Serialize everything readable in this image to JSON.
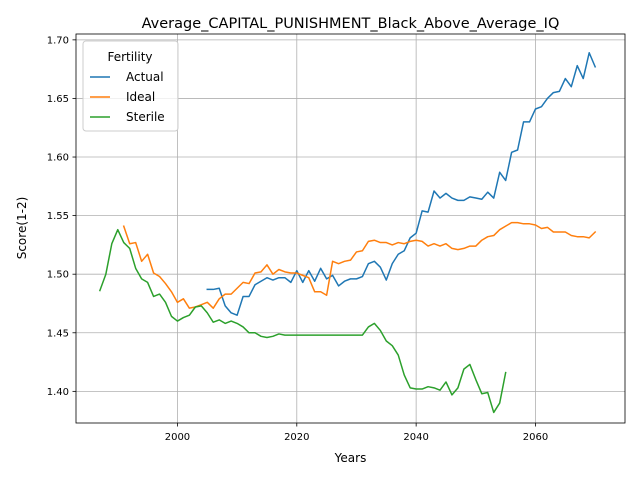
{
  "chart_data": {
    "type": "line",
    "title": "Average_CAPITAL_PUNISHMENT_Black_Above_Average_IQ",
    "xlabel": "Years",
    "ylabel": "Score(1-2)",
    "xlim": [
      1983,
      2075
    ],
    "ylim": [
      1.373,
      1.705
    ],
    "xticks": [
      2000,
      2020,
      2040,
      2060
    ],
    "yticks": [
      1.4,
      1.45,
      1.5,
      1.55,
      1.6,
      1.65,
      1.7
    ],
    "xtick_labels": [
      "2000",
      "2020",
      "2040",
      "2060"
    ],
    "ytick_labels": [
      "1.40",
      "1.45",
      "1.50",
      "1.55",
      "1.60",
      "1.65",
      "1.70"
    ],
    "grid": true,
    "legend": {
      "title": "Fertility",
      "placement": "top-left"
    },
    "series": [
      {
        "name": "Actual",
        "color": "#1f77b4",
        "points": [
          [
            2005,
            1.487
          ],
          [
            2006,
            1.487
          ],
          [
            2007,
            1.488
          ],
          [
            2008,
            1.473
          ],
          [
            2009,
            1.467
          ],
          [
            2010,
            1.465
          ],
          [
            2011,
            1.481
          ],
          [
            2012,
            1.481
          ],
          [
            2013,
            1.491
          ],
          [
            2014,
            1.494
          ],
          [
            2015,
            1.497
          ],
          [
            2016,
            1.495
          ],
          [
            2017,
            1.497
          ],
          [
            2018,
            1.497
          ],
          [
            2019,
            1.493
          ],
          [
            2020,
            1.503
          ],
          [
            2021,
            1.493
          ],
          [
            2022,
            1.503
          ],
          [
            2023,
            1.494
          ],
          [
            2024,
            1.505
          ],
          [
            2025,
            1.496
          ],
          [
            2026,
            1.499
          ],
          [
            2027,
            1.49
          ],
          [
            2028,
            1.494
          ],
          [
            2029,
            1.496
          ],
          [
            2030,
            1.496
          ],
          [
            2031,
            1.498
          ],
          [
            2032,
            1.509
          ],
          [
            2033,
            1.511
          ],
          [
            2034,
            1.506
          ],
          [
            2035,
            1.495
          ],
          [
            2036,
            1.509
          ],
          [
            2037,
            1.517
          ],
          [
            2038,
            1.52
          ],
          [
            2039,
            1.531
          ],
          [
            2040,
            1.535
          ],
          [
            2041,
            1.554
          ],
          [
            2042,
            1.553
          ],
          [
            2043,
            1.571
          ],
          [
            2044,
            1.565
          ],
          [
            2045,
            1.569
          ],
          [
            2046,
            1.565
          ],
          [
            2047,
            1.563
          ],
          [
            2048,
            1.563
          ],
          [
            2049,
            1.566
          ],
          [
            2050,
            1.565
          ],
          [
            2051,
            1.564
          ],
          [
            2052,
            1.57
          ],
          [
            2053,
            1.565
          ],
          [
            2054,
            1.587
          ],
          [
            2055,
            1.58
          ],
          [
            2056,
            1.604
          ],
          [
            2057,
            1.606
          ],
          [
            2058,
            1.63
          ],
          [
            2059,
            1.63
          ],
          [
            2060,
            1.641
          ],
          [
            2061,
            1.643
          ],
          [
            2062,
            1.65
          ],
          [
            2063,
            1.655
          ],
          [
            2064,
            1.656
          ],
          [
            2065,
            1.667
          ],
          [
            2066,
            1.66
          ],
          [
            2067,
            1.678
          ],
          [
            2068,
            1.667
          ],
          [
            2069,
            1.689
          ],
          [
            2070,
            1.677
          ]
        ]
      },
      {
        "name": "Ideal",
        "color": "#ff7f0e",
        "points": [
          [
            1991,
            1.541
          ],
          [
            1992,
            1.526
          ],
          [
            1993,
            1.527
          ],
          [
            1994,
            1.511
          ],
          [
            1995,
            1.517
          ],
          [
            1996,
            1.501
          ],
          [
            1997,
            1.498
          ],
          [
            1998,
            1.492
          ],
          [
            1999,
            1.485
          ],
          [
            2000,
            1.476
          ],
          [
            2001,
            1.479
          ],
          [
            2002,
            1.471
          ],
          [
            2003,
            1.472
          ],
          [
            2004,
            1.474
          ],
          [
            2005,
            1.476
          ],
          [
            2006,
            1.471
          ],
          [
            2007,
            1.479
          ],
          [
            2008,
            1.483
          ],
          [
            2009,
            1.483
          ],
          [
            2010,
            1.488
          ],
          [
            2011,
            1.493
          ],
          [
            2012,
            1.492
          ],
          [
            2013,
            1.501
          ],
          [
            2014,
            1.502
          ],
          [
            2015,
            1.508
          ],
          [
            2016,
            1.5
          ],
          [
            2017,
            1.504
          ],
          [
            2018,
            1.502
          ],
          [
            2019,
            1.501
          ],
          [
            2020,
            1.501
          ],
          [
            2021,
            1.499
          ],
          [
            2022,
            1.497
          ],
          [
            2023,
            1.485
          ],
          [
            2024,
            1.485
          ],
          [
            2025,
            1.482
          ],
          [
            2026,
            1.511
          ],
          [
            2027,
            1.509
          ],
          [
            2028,
            1.511
          ],
          [
            2029,
            1.512
          ],
          [
            2030,
            1.519
          ],
          [
            2031,
            1.52
          ],
          [
            2032,
            1.528
          ],
          [
            2033,
            1.529
          ],
          [
            2034,
            1.527
          ],
          [
            2035,
            1.527
          ],
          [
            2036,
            1.525
          ],
          [
            2037,
            1.527
          ],
          [
            2038,
            1.526
          ],
          [
            2039,
            1.528
          ],
          [
            2040,
            1.529
          ],
          [
            2041,
            1.528
          ],
          [
            2042,
            1.524
          ],
          [
            2043,
            1.526
          ],
          [
            2044,
            1.524
          ],
          [
            2045,
            1.526
          ],
          [
            2046,
            1.522
          ],
          [
            2047,
            1.521
          ],
          [
            2048,
            1.522
          ],
          [
            2049,
            1.524
          ],
          [
            2050,
            1.524
          ],
          [
            2051,
            1.529
          ],
          [
            2052,
            1.532
          ],
          [
            2053,
            1.533
          ],
          [
            2054,
            1.538
          ],
          [
            2055,
            1.541
          ],
          [
            2056,
            1.544
          ],
          [
            2057,
            1.544
          ],
          [
            2058,
            1.543
          ],
          [
            2059,
            1.543
          ],
          [
            2060,
            1.542
          ],
          [
            2061,
            1.539
          ],
          [
            2062,
            1.54
          ],
          [
            2063,
            1.536
          ],
          [
            2064,
            1.536
          ],
          [
            2065,
            1.536
          ],
          [
            2066,
            1.533
          ],
          [
            2067,
            1.532
          ],
          [
            2068,
            1.532
          ],
          [
            2069,
            1.531
          ],
          [
            2070,
            1.536
          ]
        ]
      },
      {
        "name": "Sterile",
        "color": "#2ca02c",
        "points": [
          [
            1987,
            1.486
          ],
          [
            1988,
            1.5
          ],
          [
            1989,
            1.526
          ],
          [
            1990,
            1.538
          ],
          [
            1991,
            1.527
          ],
          [
            1992,
            1.522
          ],
          [
            1993,
            1.505
          ],
          [
            1994,
            1.496
          ],
          [
            1995,
            1.493
          ],
          [
            1996,
            1.481
          ],
          [
            1997,
            1.483
          ],
          [
            1998,
            1.476
          ],
          [
            1999,
            1.464
          ],
          [
            2000,
            1.46
          ],
          [
            2001,
            1.463
          ],
          [
            2002,
            1.465
          ],
          [
            2003,
            1.472
          ],
          [
            2004,
            1.473
          ],
          [
            2005,
            1.467
          ],
          [
            2006,
            1.459
          ],
          [
            2007,
            1.461
          ],
          [
            2008,
            1.458
          ],
          [
            2009,
            1.46
          ],
          [
            2010,
            1.458
          ],
          [
            2011,
            1.455
          ],
          [
            2012,
            1.45
          ],
          [
            2013,
            1.45
          ],
          [
            2014,
            1.447
          ],
          [
            2015,
            1.446
          ],
          [
            2016,
            1.447
          ],
          [
            2017,
            1.449
          ],
          [
            2018,
            1.448
          ],
          [
            2019,
            1.448
          ],
          [
            2020,
            1.448
          ],
          [
            2021,
            1.448
          ],
          [
            2022,
            1.448
          ],
          [
            2023,
            1.448
          ],
          [
            2024,
            1.448
          ],
          [
            2025,
            1.448
          ],
          [
            2026,
            1.448
          ],
          [
            2027,
            1.448
          ],
          [
            2028,
            1.448
          ],
          [
            2029,
            1.448
          ],
          [
            2030,
            1.448
          ],
          [
            2031,
            1.448
          ],
          [
            2032,
            1.455
          ],
          [
            2033,
            1.458
          ],
          [
            2034,
            1.452
          ],
          [
            2035,
            1.443
          ],
          [
            2036,
            1.439
          ],
          [
            2037,
            1.431
          ],
          [
            2038,
            1.414
          ],
          [
            2039,
            1.403
          ],
          [
            2040,
            1.402
          ],
          [
            2041,
            1.402
          ],
          [
            2042,
            1.404
          ],
          [
            2043,
            1.403
          ],
          [
            2044,
            1.401
          ],
          [
            2045,
            1.408
          ],
          [
            2046,
            1.397
          ],
          [
            2047,
            1.403
          ],
          [
            2048,
            1.419
          ],
          [
            2049,
            1.423
          ],
          [
            2050,
            1.41
          ],
          [
            2051,
            1.398
          ],
          [
            2052,
            1.399
          ],
          [
            2053,
            1.382
          ],
          [
            2054,
            1.39
          ],
          [
            2055,
            1.416
          ]
        ]
      }
    ]
  }
}
